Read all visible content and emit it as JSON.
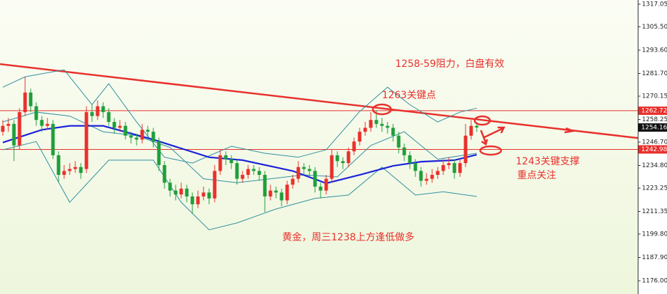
{
  "chart_data": {
    "type": "candlestick",
    "up_color": "#e8302c",
    "down_color": "#1e9e3a",
    "ylim": [
      1169.25,
      1319.18
    ],
    "yticks": [
      {
        "value": 1317.05,
        "label": "1317.05"
      },
      {
        "value": 1305.5,
        "label": "1305.50"
      },
      {
        "value": 1293.6,
        "label": "1293.60"
      },
      {
        "value": 1281.7,
        "label": "1281.70"
      },
      {
        "value": 1270.15,
        "label": "1270.15"
      },
      1258.25,
      {
        "value": 1246.7,
        "label": "1246.70"
      },
      {
        "value": 1234.8,
        "label": "1234.80"
      },
      1223.25,
      1211.35,
      {
        "value": 1199.8,
        "label": "1199.80"
      },
      {
        "value": 1187.9,
        "label": "1187.90"
      },
      {
        "value": 1176,
        "label": "1176.00"
      }
    ],
    "ohlc": [
      [
        1252,
        1258,
        1250,
        1255
      ],
      [
        1255,
        1259,
        1252,
        1256
      ],
      [
        1256,
        1258,
        1237,
        1245
      ],
      [
        1245,
        1264,
        1243,
        1262
      ],
      [
        1262,
        1280,
        1260,
        1272
      ],
      [
        1272,
        1274,
        1262,
        1265
      ],
      [
        1265,
        1267,
        1255,
        1258
      ],
      [
        1258,
        1260,
        1252,
        1255
      ],
      [
        1255,
        1259,
        1253,
        1256
      ],
      [
        1256,
        1258,
        1238,
        1240
      ],
      [
        1240,
        1242,
        1226,
        1230
      ],
      [
        1230,
        1235,
        1228,
        1232
      ],
      [
        1232,
        1236,
        1230,
        1233
      ],
      [
        1233,
        1237,
        1231,
        1234
      ],
      [
        1234,
        1236,
        1228,
        1231
      ],
      [
        1233,
        1265,
        1231,
        1262
      ],
      [
        1262,
        1266,
        1257,
        1260
      ],
      [
        1260,
        1268,
        1258,
        1265
      ],
      [
        1265,
        1267,
        1259,
        1262
      ],
      [
        1262,
        1264,
        1255,
        1257
      ],
      [
        1257,
        1259,
        1251,
        1254
      ],
      [
        1254,
        1258,
        1252,
        1255
      ],
      [
        1255,
        1257,
        1248,
        1250
      ],
      [
        1250,
        1252,
        1246,
        1249
      ],
      [
        1249,
        1251,
        1245,
        1248
      ],
      [
        1248,
        1256,
        1246,
        1253
      ],
      [
        1253,
        1255,
        1249,
        1252
      ],
      [
        1252,
        1254,
        1244,
        1247
      ],
      [
        1247,
        1249,
        1232,
        1235
      ],
      [
        1235,
        1237,
        1223,
        1226
      ],
      [
        1226,
        1228,
        1219,
        1222
      ],
      [
        1222,
        1225,
        1217,
        1220
      ],
      [
        1220,
        1226,
        1218,
        1223
      ],
      [
        1223,
        1225,
        1216,
        1219
      ],
      [
        1219,
        1221,
        1210,
        1215
      ],
      [
        1215,
        1222,
        1213,
        1219
      ],
      [
        1219,
        1224,
        1217,
        1221
      ],
      [
        1221,
        1223,
        1215,
        1218
      ],
      [
        1218,
        1235,
        1216,
        1232
      ],
      [
        1232,
        1243,
        1230,
        1240
      ],
      [
        1240,
        1242,
        1235,
        1238
      ],
      [
        1238,
        1240,
        1233,
        1236
      ],
      [
        1236,
        1238,
        1225,
        1228
      ],
      [
        1228,
        1232,
        1226,
        1230
      ],
      [
        1230,
        1235,
        1228,
        1233
      ],
      [
        1233,
        1235,
        1230,
        1232
      ],
      [
        1232,
        1234,
        1227,
        1230
      ],
      [
        1230,
        1232,
        1211,
        1219
      ],
      [
        1219,
        1225,
        1217,
        1222
      ],
      [
        1222,
        1224,
        1218,
        1221
      ],
      [
        1221,
        1223,
        1214,
        1217
      ],
      [
        1217,
        1227,
        1215,
        1225
      ],
      [
        1225,
        1230,
        1223,
        1228
      ],
      [
        1228,
        1237,
        1226,
        1234
      ],
      [
        1234,
        1236,
        1230,
        1233
      ],
      [
        1233,
        1235,
        1229,
        1232
      ],
      [
        1232,
        1234,
        1221,
        1224
      ],
      [
        1224,
        1226,
        1218,
        1222
      ],
      [
        1222,
        1230,
        1220,
        1228
      ],
      [
        1228,
        1243,
        1226,
        1240
      ],
      [
        1240,
        1242,
        1234,
        1237
      ],
      [
        1237,
        1239,
        1233,
        1236
      ],
      [
        1236,
        1244,
        1234,
        1242
      ],
      [
        1242,
        1249,
        1240,
        1247
      ],
      [
        1247,
        1254,
        1245,
        1252
      ],
      [
        1252,
        1257,
        1250,
        1254
      ],
      [
        1254,
        1262,
        1252,
        1258
      ],
      [
        1258,
        1263,
        1254,
        1256
      ],
      [
        1256,
        1259,
        1252,
        1255
      ],
      [
        1255,
        1257,
        1251,
        1254
      ],
      [
        1254,
        1256,
        1247,
        1250
      ],
      [
        1250,
        1252,
        1241,
        1244
      ],
      [
        1244,
        1246,
        1237,
        1240
      ],
      [
        1240,
        1242,
        1233,
        1236
      ],
      [
        1236,
        1238,
        1229,
        1232
      ],
      [
        1232,
        1234,
        1224,
        1227
      ],
      [
        1227,
        1231,
        1225,
        1228
      ],
      [
        1228,
        1233,
        1226,
        1230
      ],
      [
        1230,
        1234,
        1228,
        1232
      ],
      [
        1232,
        1238,
        1230,
        1235
      ],
      [
        1235,
        1239,
        1233,
        1236
      ],
      [
        1236,
        1238,
        1228,
        1231
      ],
      [
        1231,
        1238,
        1229,
        1236
      ],
      [
        1236,
        1256,
        1234,
        1250
      ],
      [
        1250,
        1258,
        1248,
        1255
      ],
      [
        1255,
        1257,
        1252,
        1254.16
      ]
    ],
    "overlays": [
      {
        "color": "#2f8fa0",
        "width": 1,
        "x": [
          0,
          4,
          11,
          16,
          19,
          24,
          29,
          34,
          41,
          47,
          53,
          58,
          64,
          69,
          73,
          78,
          82,
          85
        ],
        "values": [
          1274.7,
          1280,
          1283.6,
          1265.8,
          1276.5,
          1257,
          1239,
          1236,
          1244.6,
          1241,
          1239,
          1242.8,
          1262.3,
          1274.7,
          1265.8,
          1257,
          1262,
          1264
        ]
      },
      {
        "color": "#2f8fa0",
        "width": 1,
        "x": [
          0,
          6,
          12,
          18,
          24,
          30,
          36,
          42,
          48,
          54,
          60,
          66,
          72,
          78,
          85
        ],
        "values": [
          1257,
          1262,
          1260,
          1252,
          1250,
          1244,
          1228,
          1226,
          1228,
          1230,
          1229,
          1245,
          1252,
          1238,
          1241
        ]
      },
      {
        "color": "#2f8fa0",
        "width": 1,
        "x": [
          0,
          6,
          12,
          19,
          27,
          32,
          37,
          42,
          49,
          56,
          62,
          68,
          74,
          79,
          85
        ],
        "values": [
          1242.8,
          1247,
          1216,
          1237.5,
          1237.5,
          1216,
          1202,
          1205.5,
          1212.6,
          1218,
          1219.7,
          1234,
          1219.7,
          1221.4,
          1219
        ]
      },
      {
        "color": "#1a22d8",
        "width": 2.2,
        "x": [
          0,
          7,
          12,
          18,
          27,
          37,
          43,
          52,
          58,
          64,
          70,
          75,
          81,
          85
        ],
        "values": [
          1246.5,
          1253,
          1255,
          1255,
          1248,
          1239,
          1237.5,
          1232,
          1225.7,
          1230,
          1234.6,
          1236.7,
          1237.5,
          1240.3
        ]
      }
    ],
    "trendline": {
      "color": "#e8302c",
      "x": [
        -0.5,
        113.875
      ],
      "values": [
        1286.5,
        1248.8
      ]
    },
    "levels": [
      {
        "value": 1262.72,
        "label": "1262.72",
        "color": "#e8302c"
      },
      {
        "value": 1242.98,
        "label": "1242.98",
        "color": "#e8302c"
      }
    ],
    "current": {
      "value": 1254.16,
      "label": "1254.16"
    },
    "annotations": [
      "1258-59阻力，白盘有效",
      "1263关键点",
      "1243关键支撑",
      "重点关注",
      "黄金，周三1238上方逢低做多"
    ]
  }
}
